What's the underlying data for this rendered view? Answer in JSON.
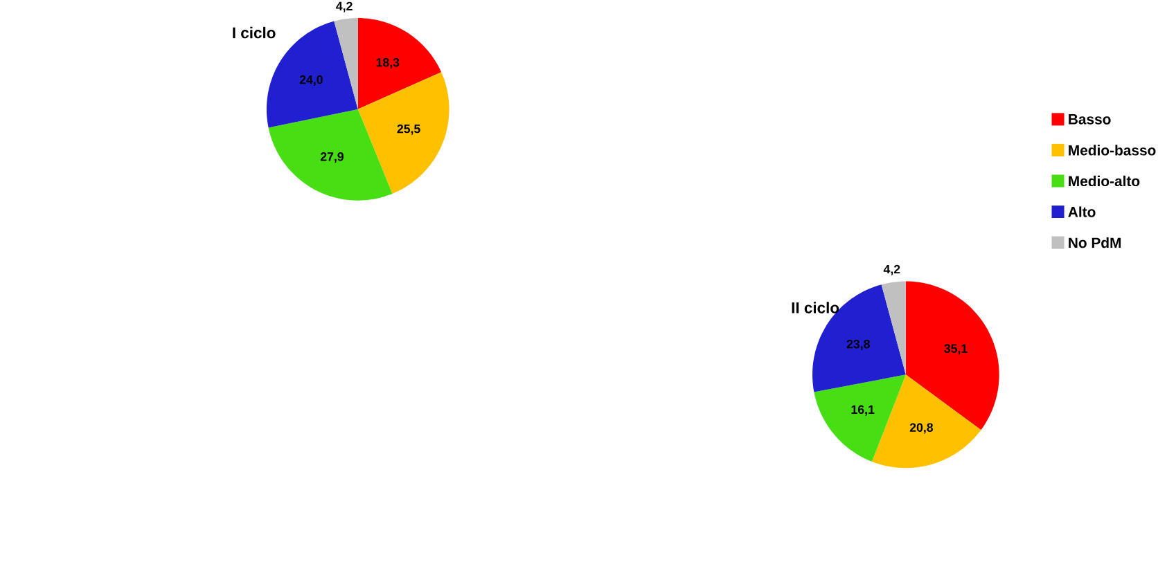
{
  "chart_data": [
    {
      "type": "pie",
      "title": "I ciclo",
      "categories": [
        null,
        null,
        null,
        null,
        null
      ],
      "values": [
        18.3,
        25.5,
        27.9,
        24.0,
        4.2
      ],
      "value_labels": [
        "18,3",
        "25,5",
        "27,9",
        "24,0",
        "4,2"
      ],
      "colors": [
        "#ff0000",
        "#ffc000",
        "#48de14",
        "#2020d0",
        "#c0c0c0"
      ]
    },
    {
      "type": "pie",
      "title": "II ciclo",
      "categories": [
        "Basso",
        "Medio-basso",
        "Medio-alto",
        "Alto",
        "No PdM"
      ],
      "values": [
        35.1,
        20.8,
        16.1,
        23.8,
        4.2
      ],
      "value_labels": [
        "35,1",
        "20,8",
        "16,1",
        "23,8",
        "4,2"
      ],
      "colors": [
        "#ff0000",
        "#ffc000",
        "#48de14",
        "#2020d0",
        "#c0c0c0"
      ],
      "legend": "top right"
    }
  ]
}
